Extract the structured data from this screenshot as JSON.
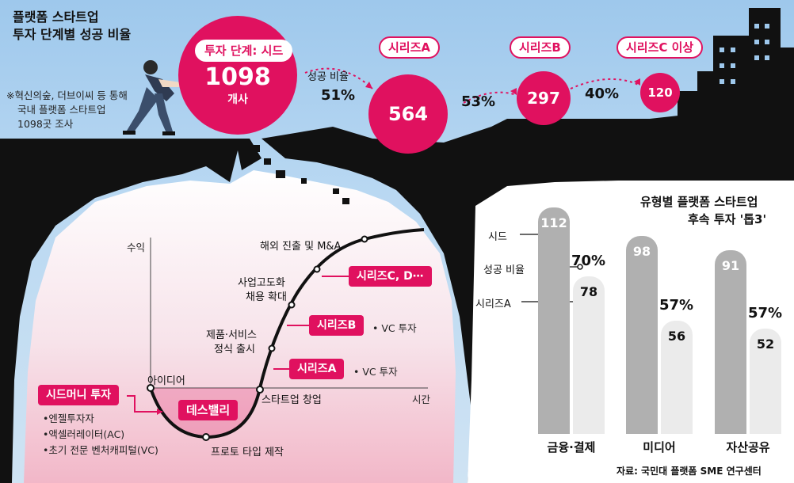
{
  "header": {
    "title_line1": "플랫폼 스타트업",
    "title_line2": "투자 단계별 성공 비율",
    "note_line1": "※혁신의숲, 더브이씨 등 통해",
    "note_line2": "국내 플랫폼 스타트업",
    "note_line3": "1098곳 조사"
  },
  "stages": {
    "seed_label": "투자 단계: 시드",
    "seed_value": "1098",
    "seed_unit": "개사",
    "rate_label": "성공 비율",
    "rate1": "51%",
    "seriesA_label": "시리즈A",
    "seriesA_value": "564",
    "rate2": "53%",
    "seriesB_label": "시리즈B",
    "seriesB_value": "297",
    "rate3": "40%",
    "seriesC_label": "시리즈C 이상",
    "seriesC_value": "120"
  },
  "valley": {
    "y_axis": "수익",
    "x_axis": "시간",
    "idea": "아이디어",
    "death_valley": "데스밸리",
    "prototype": "프로토 타입 제작",
    "startup": "스타트업 창업",
    "product_line1": "제품·서비스",
    "product_line2": "정식 출시",
    "hire_line1": "사업고도화",
    "hire_line2": "채용 확대",
    "overseas": "해외 진출 및 M&A",
    "seed_money": "시드머니 투자",
    "investor1": "•엔젤투자자",
    "investor2": "•액셀러레이터(AC)",
    "investor3": "•초기 전문 벤처캐피털(VC)",
    "tagA": "시리즈A",
    "tagA_note": "• VC 투자",
    "tagB": "시리즈B",
    "tagB_note": "• VC 투자",
    "tagC": "시리즈C, D⋯"
  },
  "chart_data": {
    "type": "bar",
    "title": "유형별 플랫폼 스타트업",
    "subtitle": "후속 투자 '톱3'",
    "categories": [
      "금융·결제",
      "미디어",
      "자산공유"
    ],
    "series": [
      {
        "name": "시드",
        "values": [
          112,
          98,
          91
        ]
      },
      {
        "name": "시리즈A",
        "values": [
          78,
          56,
          52
        ]
      }
    ],
    "rate_label": "성공 비율",
    "rates": [
      "70%",
      "57%",
      "57%"
    ],
    "source": "자료: 국민대 플랫폼 SME 연구센터"
  },
  "colors": {
    "accent": "#e0115f",
    "cliff": "#111111",
    "bar_dark": "#b0b0b0",
    "bar_light": "#ebebeb"
  }
}
